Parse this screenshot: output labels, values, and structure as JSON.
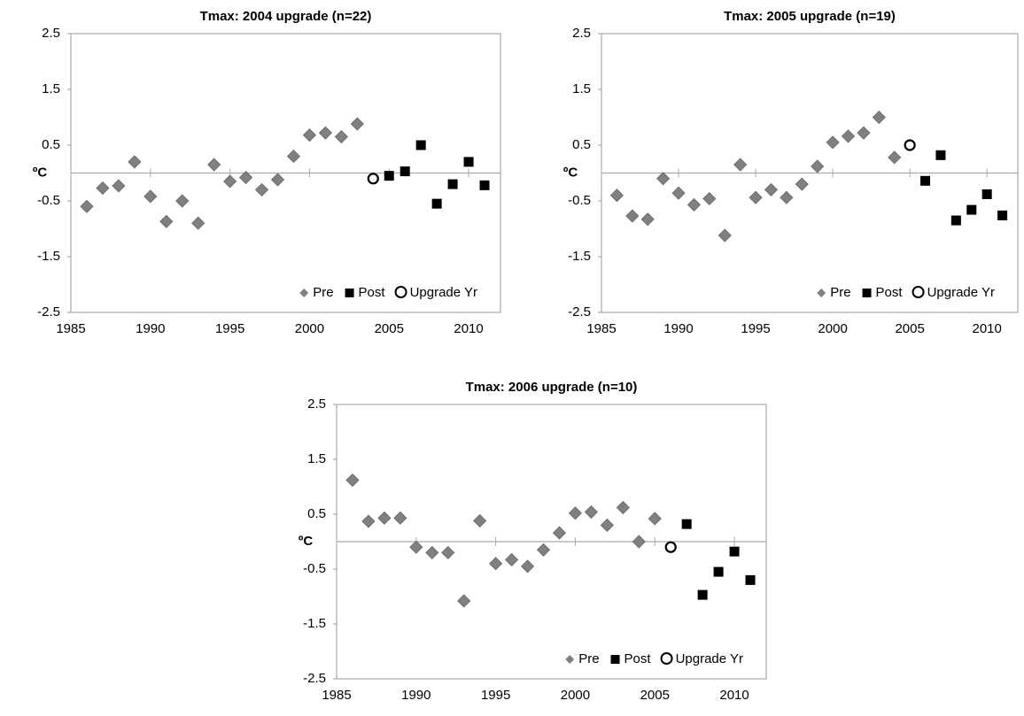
{
  "chart_data": [
    {
      "type": "scatter",
      "title": "Tmax: 2004 upgrade (n=22)",
      "y_label": "ºC",
      "xlim": [
        1985,
        2012
      ],
      "xticks": [
        1985,
        1990,
        1995,
        2000,
        2005,
        2010
      ],
      "ylim": [
        -2.5,
        2.5
      ],
      "yticks": [
        2.5,
        1.5,
        0.5,
        -0.5,
        -1.5,
        -2.5
      ],
      "legend": "lower right",
      "series": [
        {
          "name": "Pre",
          "color": "#808080",
          "marker": "diamond",
          "x": [
            1986,
            1987,
            1988,
            1989,
            1990,
            1991,
            1992,
            1993,
            1994,
            1995,
            1996,
            1997,
            1998,
            1999,
            2000,
            2001,
            2002,
            2003
          ],
          "values": [
            -0.6,
            -0.27,
            -0.23,
            0.2,
            -0.42,
            -0.87,
            -0.5,
            -0.9,
            0.15,
            -0.15,
            -0.08,
            -0.3,
            -0.12,
            0.3,
            0.68,
            0.72,
            0.65,
            0.88
          ]
        },
        {
          "name": "Post",
          "color": "#000000",
          "marker": "square",
          "x": [
            2005,
            2006,
            2007,
            2008,
            2009,
            2010,
            2011
          ],
          "values": [
            -0.05,
            0.03,
            0.5,
            -0.55,
            -0.2,
            0.2,
            -0.22
          ]
        },
        {
          "name": "Upgrade Yr",
          "color": "#000000",
          "marker": "open-circle",
          "x": [
            2004
          ],
          "values": [
            -0.1
          ]
        }
      ]
    },
    {
      "type": "scatter",
      "title": "Tmax: 2005 upgrade (n=19)",
      "y_label": "ºC",
      "xlim": [
        1985,
        2012
      ],
      "xticks": [
        1985,
        1990,
        1995,
        2000,
        2005,
        2010
      ],
      "ylim": [
        -2.5,
        2.5
      ],
      "yticks": [
        2.5,
        1.5,
        0.5,
        -0.5,
        -1.5,
        -2.5
      ],
      "legend": "lower right",
      "series": [
        {
          "name": "Pre",
          "color": "#808080",
          "marker": "diamond",
          "x": [
            1986,
            1987,
            1988,
            1989,
            1990,
            1991,
            1992,
            1993,
            1994,
            1995,
            1996,
            1997,
            1998,
            1999,
            2000,
            2001,
            2002,
            2003,
            2004
          ],
          "values": [
            -0.4,
            -0.77,
            -0.83,
            -0.1,
            -0.36,
            -0.57,
            -0.46,
            -1.12,
            0.15,
            -0.44,
            -0.3,
            -0.44,
            -0.2,
            0.12,
            0.55,
            0.66,
            0.72,
            1.0,
            0.28
          ]
        },
        {
          "name": "Post",
          "color": "#000000",
          "marker": "square",
          "x": [
            2006,
            2007,
            2008,
            2009,
            2010,
            2011
          ],
          "values": [
            -0.14,
            0.32,
            -0.85,
            -0.66,
            -0.38,
            -0.76
          ]
        },
        {
          "name": "Upgrade Yr",
          "color": "#000000",
          "marker": "open-circle",
          "x": [
            2005
          ],
          "values": [
            0.5
          ]
        }
      ]
    },
    {
      "type": "scatter",
      "title": "Tmax: 2006 upgrade (n=10)",
      "y_label": "ºC",
      "xlim": [
        1985,
        2012
      ],
      "xticks": [
        1985,
        1990,
        1995,
        2000,
        2005,
        2010
      ],
      "ylim": [
        -2.5,
        2.5
      ],
      "yticks": [
        2.5,
        1.5,
        0.5,
        -0.5,
        -1.5,
        -2.5
      ],
      "legend": "lower right",
      "series": [
        {
          "name": "Pre",
          "color": "#808080",
          "marker": "diamond",
          "x": [
            1986,
            1987,
            1988,
            1989,
            1990,
            1991,
            1992,
            1993,
            1994,
            1995,
            1996,
            1997,
            1998,
            1999,
            2000,
            2001,
            2002,
            2003,
            2004,
            2005
          ],
          "values": [
            1.12,
            0.37,
            0.43,
            0.43,
            -0.1,
            -0.2,
            -0.2,
            -1.08,
            0.38,
            -0.4,
            -0.33,
            -0.45,
            -0.15,
            0.16,
            0.52,
            0.54,
            0.3,
            0.62,
            0.0,
            0.42
          ]
        },
        {
          "name": "Post",
          "color": "#000000",
          "marker": "square",
          "x": [
            2007,
            2008,
            2009,
            2010,
            2011
          ],
          "values": [
            0.32,
            -0.97,
            -0.55,
            -0.18,
            -0.7
          ]
        },
        {
          "name": "Upgrade Yr",
          "color": "#000000",
          "marker": "open-circle",
          "x": [
            2006
          ],
          "values": [
            -0.1
          ]
        }
      ]
    }
  ]
}
